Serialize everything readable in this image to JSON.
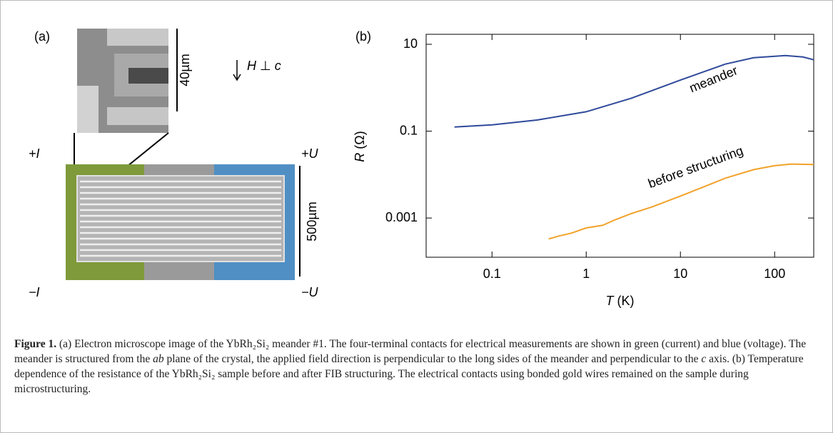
{
  "panel_a": {
    "label": "(a)",
    "inset_scale": "40µm",
    "field": [
      "H",
      "⊥",
      "c"
    ],
    "plus_i": "+I",
    "minus_i": "−I",
    "plus_u": "+U",
    "minus_u": "−U",
    "main_scale": "500µm"
  },
  "chart_data": {
    "type": "line",
    "panel_label": "(b)",
    "xlabel": {
      "symbol": "T",
      "unit": "(K)"
    },
    "ylabel": {
      "symbol": "R",
      "unit": "(Ω)"
    },
    "xscale": "log",
    "yscale": "log",
    "xlim": [
      0.02,
      260
    ],
    "ylim": [
      0.000125,
      17
    ],
    "xticks": [
      0.1,
      1,
      10,
      100
    ],
    "yticks": [
      0.001,
      0.1,
      10
    ],
    "series": [
      {
        "name": "meander",
        "color": "#2f4a9b",
        "x": [
          0.04,
          0.1,
          0.3,
          1,
          3,
          10,
          30,
          60,
          130,
          200,
          260
        ],
        "values": [
          0.125,
          0.14,
          0.18,
          0.28,
          0.57,
          1.5,
          3.5,
          4.9,
          5.5,
          5.1,
          4.4
        ]
      },
      {
        "name": "before structuring",
        "color": "#f2a22a",
        "x": [
          0.4,
          0.5,
          0.7,
          1,
          1.5,
          2,
          3,
          5,
          10,
          20,
          30,
          60,
          100,
          150,
          260
        ],
        "values": [
          0.00033,
          0.00038,
          0.00045,
          0.00059,
          0.00068,
          0.0009,
          0.00126,
          0.0018,
          0.0032,
          0.0058,
          0.0083,
          0.013,
          0.016,
          0.0175,
          0.017
        ]
      }
    ]
  },
  "caption": {
    "label": "Figure 1.",
    "runs": [
      {
        "text": " (a) Electron microscope image of the YbRh₂Si₂ meander #1. The four-terminal contacts for electrical measurements are shown in green (current) and blue (voltage). The meander is structured from the "
      },
      {
        "text": "ab",
        "style": "italic"
      },
      {
        "text": " plane of the crystal, the applied field direction is perpendicular to the long sides of the meander and perpendicular to the "
      },
      {
        "text": "c",
        "style": "italic"
      },
      {
        "text": " axis. (b) Temperature dependence of the resistance of the YbRh₂Si₂ sample before and after FIB structuring. The electrical contacts using bonded gold wires remained on the sample during microstructuring."
      }
    ]
  }
}
